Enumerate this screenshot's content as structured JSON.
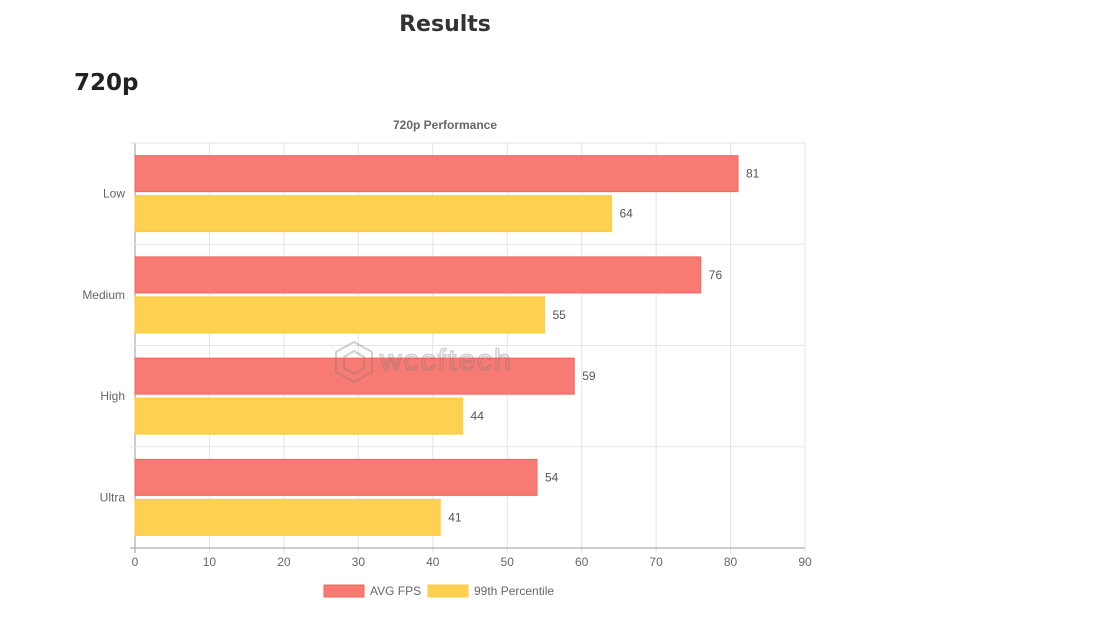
{
  "page": {
    "title": "Results",
    "section_title": "720p"
  },
  "watermark": {
    "text": "wccftech"
  },
  "chart_data": {
    "type": "bar",
    "orientation": "horizontal",
    "title": "720p Performance",
    "categories": [
      "Low",
      "Medium",
      "High",
      "Ultra"
    ],
    "series": [
      {
        "name": "AVG FPS",
        "values": [
          81,
          76,
          59,
          54
        ],
        "color": "#f77b72",
        "border": "#f4645a"
      },
      {
        "name": "99th Percentile",
        "values": [
          64,
          55,
          44,
          41
        ],
        "color": "#ffd152",
        "border": "#ffc93a"
      }
    ],
    "xlim": [
      0,
      90
    ],
    "x_ticks": [
      0,
      10,
      20,
      30,
      40,
      50,
      60,
      70,
      80,
      90
    ],
    "grid": true,
    "legend_position": "bottom",
    "data_labels": true
  }
}
